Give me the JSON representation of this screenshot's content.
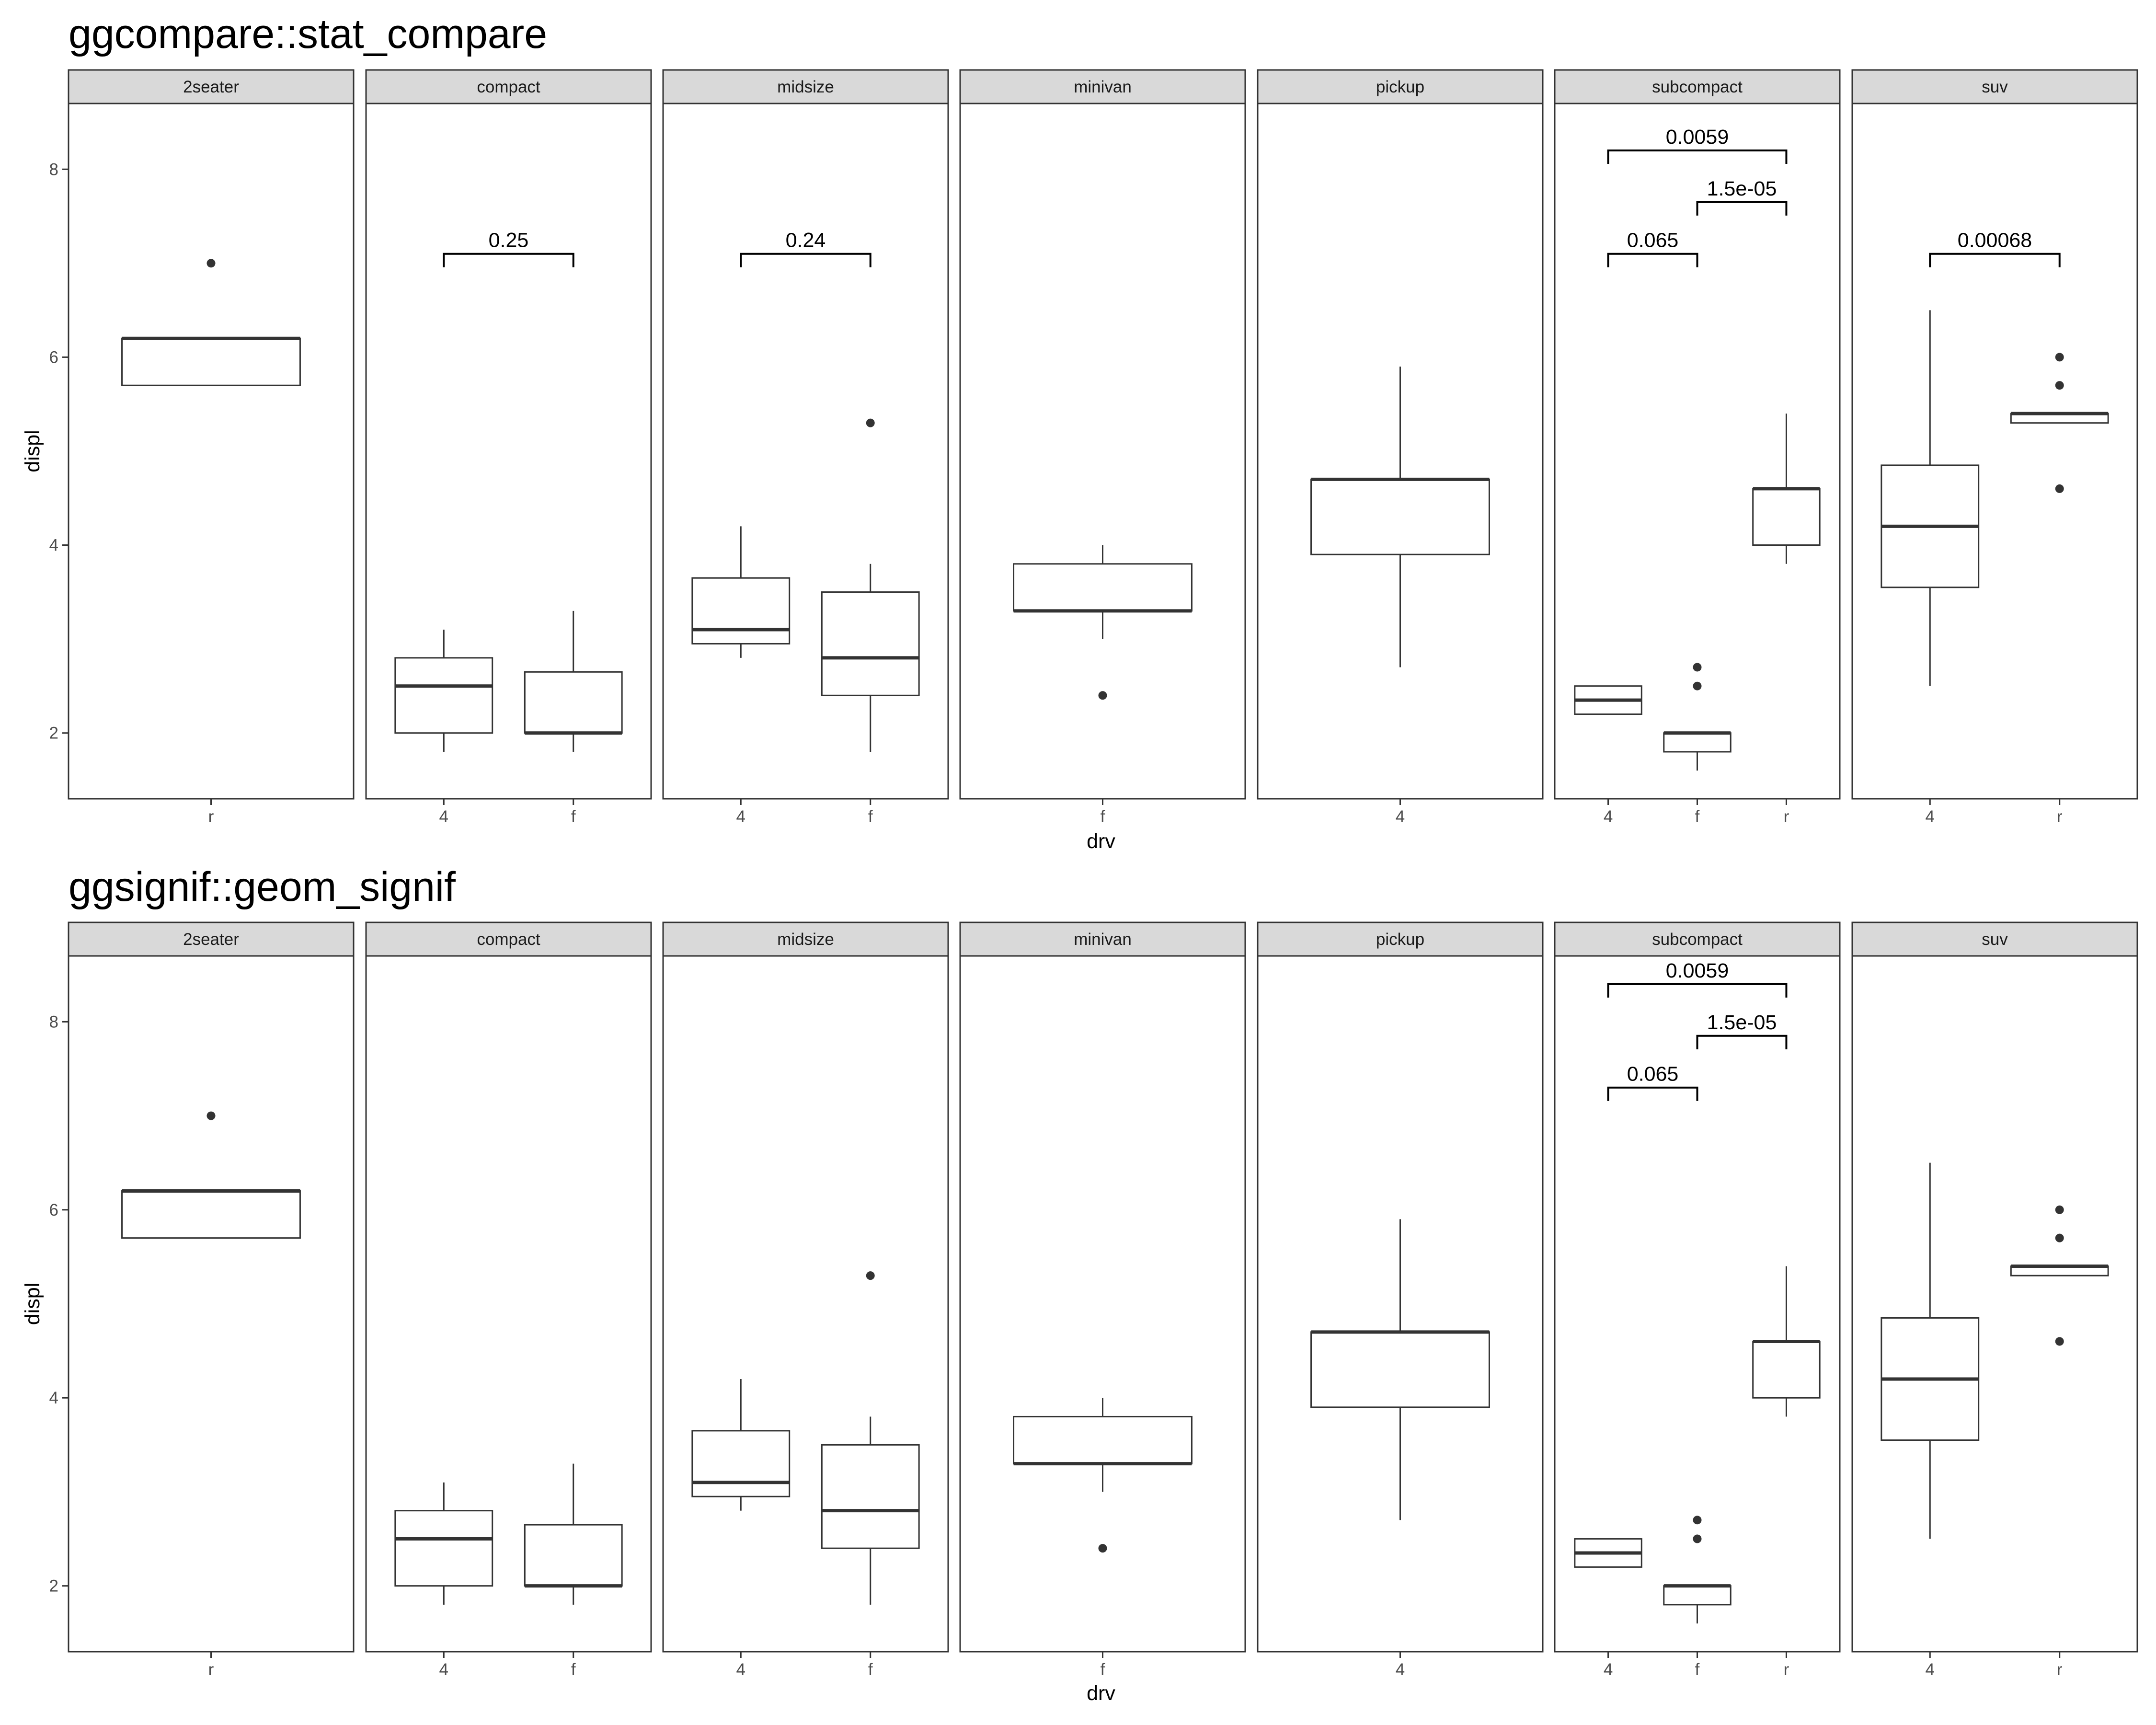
{
  "chart_data": [
    {
      "type": "boxplot",
      "title": "ggcompare::stat_compare",
      "xlabel": "drv",
      "ylabel": "displ",
      "ylim": [
        1.3,
        8.7
      ],
      "yticks": [
        2,
        4,
        6,
        8
      ],
      "grid": false,
      "facets": [
        {
          "name": "2seater",
          "categories": [
            "r"
          ],
          "boxes": [
            {
              "x": "r",
              "whisker_low": 5.7,
              "q1": 5.7,
              "median": 6.2,
              "q3": 6.2,
              "whisker_high": 6.2,
              "outliers": [
                7.0
              ]
            }
          ],
          "brackets": []
        },
        {
          "name": "compact",
          "categories": [
            "4",
            "f"
          ],
          "boxes": [
            {
              "x": "4",
              "whisker_low": 1.8,
              "q1": 2.0,
              "median": 2.5,
              "q3": 2.8,
              "whisker_high": 3.1,
              "outliers": []
            },
            {
              "x": "f",
              "whisker_low": 1.8,
              "q1": 2.0,
              "median": 2.0,
              "q3": 2.65,
              "whisker_high": 3.3,
              "outliers": []
            }
          ],
          "brackets": [
            {
              "from": "4",
              "to": "f",
              "y": 7.1,
              "label": "0.25"
            }
          ]
        },
        {
          "name": "midsize",
          "categories": [
            "4",
            "f"
          ],
          "boxes": [
            {
              "x": "4",
              "whisker_low": 2.8,
              "q1": 2.95,
              "median": 3.1,
              "q3": 3.65,
              "whisker_high": 4.2,
              "outliers": []
            },
            {
              "x": "f",
              "whisker_low": 1.8,
              "q1": 2.4,
              "median": 2.8,
              "q3": 3.5,
              "whisker_high": 3.8,
              "outliers": [
                5.3
              ]
            }
          ],
          "brackets": [
            {
              "from": "4",
              "to": "f",
              "y": 7.1,
              "label": "0.24"
            }
          ]
        },
        {
          "name": "minivan",
          "categories": [
            "f"
          ],
          "boxes": [
            {
              "x": "f",
              "whisker_low": 3.0,
              "q1": 3.3,
              "median": 3.3,
              "q3": 3.8,
              "whisker_high": 4.0,
              "outliers": [
                2.4
              ]
            }
          ],
          "brackets": []
        },
        {
          "name": "pickup",
          "categories": [
            "4"
          ],
          "boxes": [
            {
              "x": "4",
              "whisker_low": 2.7,
              "q1": 3.9,
              "median": 4.7,
              "q3": 4.7,
              "whisker_high": 5.9,
              "outliers": []
            }
          ],
          "brackets": []
        },
        {
          "name": "subcompact",
          "categories": [
            "4",
            "f",
            "r"
          ],
          "boxes": [
            {
              "x": "4",
              "whisker_low": 2.2,
              "q1": 2.2,
              "median": 2.35,
              "q3": 2.5,
              "whisker_high": 2.5,
              "outliers": []
            },
            {
              "x": "f",
              "whisker_low": 1.6,
              "q1": 1.8,
              "median": 2.0,
              "q3": 2.0,
              "whisker_high": 2.0,
              "outliers": [
                2.5,
                2.7
              ]
            },
            {
              "x": "r",
              "whisker_low": 3.8,
              "q1": 4.0,
              "median": 4.6,
              "q3": 4.6,
              "whisker_high": 5.4,
              "outliers": []
            }
          ],
          "brackets": [
            {
              "from": "4",
              "to": "f",
              "y": 7.1,
              "label": "0.065"
            },
            {
              "from": "f",
              "to": "r",
              "y": 7.65,
              "label": "1.5e-05"
            },
            {
              "from": "4",
              "to": "r",
              "y": 8.2,
              "label": "0.0059"
            }
          ]
        },
        {
          "name": "suv",
          "categories": [
            "4",
            "r"
          ],
          "boxes": [
            {
              "x": "4",
              "whisker_low": 2.5,
              "q1": 3.55,
              "median": 4.2,
              "q3": 4.85,
              "whisker_high": 6.5,
              "outliers": []
            },
            {
              "x": "r",
              "whisker_low": 5.3,
              "q1": 5.3,
              "median": 5.4,
              "q3": 5.4,
              "whisker_high": 5.4,
              "outliers": [
                4.6,
                5.7,
                6.0
              ]
            }
          ],
          "brackets": [
            {
              "from": "4",
              "to": "r",
              "y": 7.1,
              "label": "0.00068"
            }
          ]
        }
      ]
    },
    {
      "type": "boxplot",
      "title": "ggsignif::geom_signif",
      "xlabel": "drv",
      "ylabel": "displ",
      "ylim": [
        1.3,
        8.7
      ],
      "yticks": [
        2,
        4,
        6,
        8
      ],
      "grid": false,
      "facets": [
        {
          "name": "2seater",
          "categories": [
            "r"
          ],
          "boxes": [
            {
              "x": "r",
              "whisker_low": 5.7,
              "q1": 5.7,
              "median": 6.2,
              "q3": 6.2,
              "whisker_high": 6.2,
              "outliers": [
                7.0
              ]
            }
          ],
          "brackets": []
        },
        {
          "name": "compact",
          "categories": [
            "4",
            "f"
          ],
          "boxes": [
            {
              "x": "4",
              "whisker_low": 1.8,
              "q1": 2.0,
              "median": 2.5,
              "q3": 2.8,
              "whisker_high": 3.1,
              "outliers": []
            },
            {
              "x": "f",
              "whisker_low": 1.8,
              "q1": 2.0,
              "median": 2.0,
              "q3": 2.65,
              "whisker_high": 3.3,
              "outliers": []
            }
          ],
          "brackets": []
        },
        {
          "name": "midsize",
          "categories": [
            "4",
            "f"
          ],
          "boxes": [
            {
              "x": "4",
              "whisker_low": 2.8,
              "q1": 2.95,
              "median": 3.1,
              "q3": 3.65,
              "whisker_high": 4.2,
              "outliers": []
            },
            {
              "x": "f",
              "whisker_low": 1.8,
              "q1": 2.4,
              "median": 2.8,
              "q3": 3.5,
              "whisker_high": 3.8,
              "outliers": [
                5.3
              ]
            }
          ],
          "brackets": []
        },
        {
          "name": "minivan",
          "categories": [
            "f"
          ],
          "boxes": [
            {
              "x": "f",
              "whisker_low": 3.0,
              "q1": 3.3,
              "median": 3.3,
              "q3": 3.8,
              "whisker_high": 4.0,
              "outliers": [
                2.4
              ]
            }
          ],
          "brackets": []
        },
        {
          "name": "pickup",
          "categories": [
            "4"
          ],
          "boxes": [
            {
              "x": "4",
              "whisker_low": 2.7,
              "q1": 3.9,
              "median": 4.7,
              "q3": 4.7,
              "whisker_high": 5.9,
              "outliers": []
            }
          ],
          "brackets": []
        },
        {
          "name": "subcompact",
          "categories": [
            "4",
            "f",
            "r"
          ],
          "boxes": [
            {
              "x": "4",
              "whisker_low": 2.2,
              "q1": 2.2,
              "median": 2.35,
              "q3": 2.5,
              "whisker_high": 2.5,
              "outliers": []
            },
            {
              "x": "f",
              "whisker_low": 1.6,
              "q1": 1.8,
              "median": 2.0,
              "q3": 2.0,
              "whisker_high": 2.0,
              "outliers": [
                2.5,
                2.7
              ]
            },
            {
              "x": "r",
              "whisker_low": 3.8,
              "q1": 4.0,
              "median": 4.6,
              "q3": 4.6,
              "whisker_high": 5.4,
              "outliers": []
            }
          ],
          "brackets": [
            {
              "from": "4",
              "to": "f",
              "y": 7.3,
              "label": "0.065"
            },
            {
              "from": "f",
              "to": "r",
              "y": 7.85,
              "label": "1.5e-05"
            },
            {
              "from": "4",
              "to": "r",
              "y": 8.4,
              "label": "0.0059"
            }
          ]
        },
        {
          "name": "suv",
          "categories": [
            "4",
            "r"
          ],
          "boxes": [
            {
              "x": "4",
              "whisker_low": 2.5,
              "q1": 3.55,
              "median": 4.2,
              "q3": 4.85,
              "whisker_high": 6.5,
              "outliers": []
            },
            {
              "x": "r",
              "whisker_low": 5.3,
              "q1": 5.3,
              "median": 5.4,
              "q3": 5.4,
              "whisker_high": 5.4,
              "outliers": [
                4.6,
                5.7,
                6.0
              ]
            }
          ],
          "brackets": []
        }
      ]
    }
  ]
}
